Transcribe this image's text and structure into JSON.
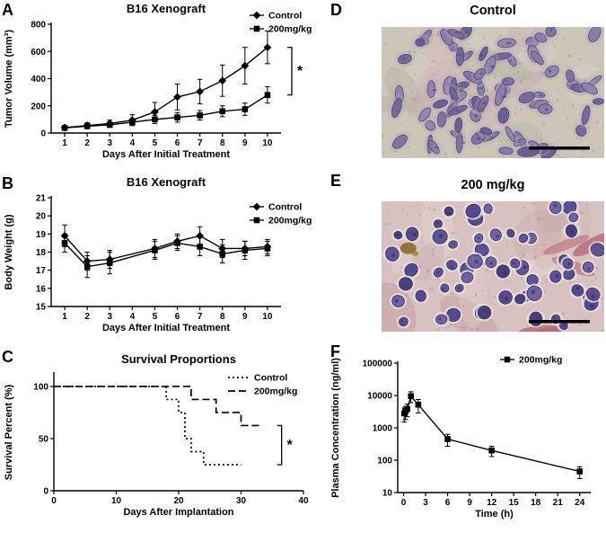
{
  "panel_labels": {
    "a": "A",
    "b": "B",
    "c": "C",
    "d": "D",
    "e": "E",
    "f": "F"
  },
  "histology": {
    "D": {
      "title": "Control",
      "bg": "#ccc5b8",
      "nucleus": "#7b6fa0"
    },
    "E": {
      "title": "200 mg/kg",
      "bg": "#d8c2c1",
      "nucleus": "#4a3f88"
    }
  },
  "chart_data": [
    {
      "panel": "A",
      "type": "line",
      "title": "B16 Xenograft",
      "xlabel": "Days After Initial Treatment",
      "ylabel": "Tumor Volume (mm³)",
      "xlim": [
        0.4,
        10.6
      ],
      "ylim": [
        0,
        800
      ],
      "xticks": [
        1,
        2,
        3,
        4,
        5,
        6,
        7,
        8,
        9,
        10
      ],
      "yticks": [
        0,
        200,
        400,
        600,
        800
      ],
      "significance": "*",
      "legend_position": "top-right",
      "series": [
        {
          "name": "Control",
          "marker": "diamond",
          "x": [
            1,
            2,
            3,
            4,
            5,
            6,
            7,
            8,
            9,
            10
          ],
          "values": [
            40,
            55,
            70,
            95,
            155,
            265,
            305,
            385,
            495,
            630
          ],
          "errors": [
            15,
            20,
            25,
            40,
            70,
            95,
            90,
            115,
            135,
            120
          ]
        },
        {
          "name": "200mg/kg",
          "marker": "square",
          "x": [
            1,
            2,
            3,
            4,
            5,
            6,
            7,
            8,
            9,
            10
          ],
          "values": [
            38,
            50,
            60,
            80,
            100,
            115,
            130,
            160,
            175,
            280
          ],
          "errors": [
            12,
            15,
            18,
            25,
            30,
            35,
            35,
            40,
            45,
            60
          ]
        }
      ]
    },
    {
      "panel": "B",
      "type": "line",
      "title": "B16 Xenograft",
      "xlabel": "Days After Initial Treatment",
      "ylabel": "Body Weight (g)",
      "xlim": [
        0.4,
        10.6
      ],
      "ylim": [
        15,
        21
      ],
      "xticks": [
        1,
        2,
        3,
        4,
        5,
        6,
        7,
        8,
        9,
        10
      ],
      "yticks": [
        15,
        16,
        17,
        18,
        19,
        20,
        21
      ],
      "legend_position": "top-right",
      "series": [
        {
          "name": "Control",
          "marker": "diamond",
          "x": [
            1,
            2,
            3,
            5,
            6,
            7,
            8,
            9,
            10
          ],
          "values": [
            18.9,
            17.5,
            17.6,
            18.2,
            18.6,
            18.9,
            18.2,
            18.2,
            18.3
          ],
          "errors": [
            0.6,
            0.5,
            0.5,
            0.5,
            0.4,
            0.5,
            0.5,
            0.4,
            0.4
          ]
        },
        {
          "name": "200mg/kg",
          "marker": "square",
          "x": [
            1,
            2,
            3,
            5,
            6,
            7,
            8,
            9,
            10
          ],
          "values": [
            18.5,
            17.2,
            17.4,
            18.1,
            18.5,
            18.3,
            17.9,
            18.1,
            18.2
          ],
          "errors": [
            0.5,
            0.6,
            0.6,
            0.5,
            0.4,
            0.5,
            0.5,
            0.5,
            0.4
          ]
        }
      ]
    },
    {
      "panel": "C",
      "type": "step",
      "title": "Survival Proportions",
      "xlabel": "Days After Implantation",
      "ylabel": "Survival Percent (%)",
      "xlim": [
        0,
        40
      ],
      "ylim": [
        0,
        112
      ],
      "xticks": [
        0,
        10,
        20,
        30,
        40
      ],
      "yticks": [
        0,
        50,
        100
      ],
      "significance": "*",
      "legend_position": "top-right",
      "series": [
        {
          "name": "Control",
          "dash": "2,3",
          "points": [
            [
              0,
              100
            ],
            [
              18,
              100
            ],
            [
              18,
              87.5
            ],
            [
              20,
              87.5
            ],
            [
              20,
              75
            ],
            [
              21,
              75
            ],
            [
              21,
              50
            ],
            [
              22,
              50
            ],
            [
              22,
              37.5
            ],
            [
              24,
              37.5
            ],
            [
              24,
              25
            ],
            [
              30,
              25
            ]
          ]
        },
        {
          "name": "200mg/kg",
          "dash": "8,4",
          "points": [
            [
              0,
              100
            ],
            [
              22,
              100
            ],
            [
              22,
              87.5
            ],
            [
              26,
              87.5
            ],
            [
              26,
              75
            ],
            [
              30,
              75
            ],
            [
              30,
              62.5
            ],
            [
              33,
              62.5
            ]
          ]
        }
      ]
    },
    {
      "panel": "F",
      "type": "line",
      "ylog": true,
      "title": "",
      "xlabel": "Time (h)",
      "ylabel": "Plasma Concentration (ng/ml)",
      "xlim": [
        -0.8,
        25.5
      ],
      "ylim": [
        10,
        100000
      ],
      "xticks": [
        0,
        3,
        6,
        9,
        12,
        15,
        18,
        21,
        24
      ],
      "yticks": [
        10,
        100,
        1000,
        10000,
        100000
      ],
      "legend_position": "top-right",
      "series": [
        {
          "name": "200mg/kg",
          "marker": "square",
          "x": [
            0.083,
            0.25,
            0.5,
            1,
            2,
            6,
            12,
            24
          ],
          "values": [
            2800,
            3200,
            3800,
            9500,
            5200,
            450,
            200,
            45
          ],
          "errors": [
            1300,
            1400,
            1600,
            3500,
            2300,
            180,
            70,
            18
          ]
        }
      ]
    }
  ]
}
